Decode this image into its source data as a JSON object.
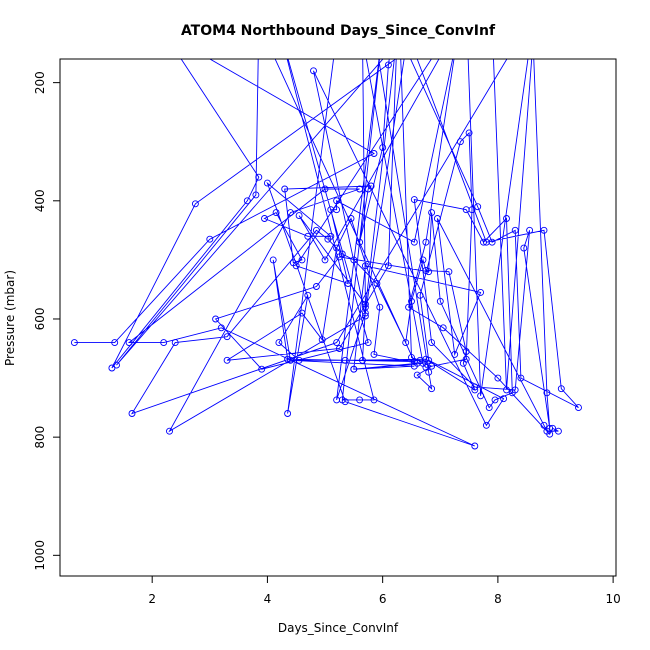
{
  "chart_data": {
    "type": "line",
    "title": "ATOM4 Northbound Days_Since_ConvInf",
    "xlabel": "Days_Since_ConvInf",
    "ylabel": "Pressure (mbar)",
    "xlim": [
      0.4,
      10.05
    ],
    "ylim": [
      1035,
      160
    ],
    "y_inverted": true,
    "x_ticks": [
      2,
      4,
      6,
      8,
      10
    ],
    "y_ticks": [
      200,
      400,
      600,
      800,
      1000
    ],
    "grid": false,
    "legend": "none",
    "marker": "open-circle",
    "series_color": "#0000ff",
    "series": [
      {
        "values": [
          [
            0.65,
            640
          ],
          [
            1.35,
            640
          ],
          [
            3.0,
            465
          ],
          [
            5.85,
            320
          ],
          [
            2.2,
            115
          ],
          [
            3.85,
            360
          ],
          [
            3.65,
            400
          ],
          [
            1.3,
            683
          ],
          [
            2.75,
            405
          ],
          [
            7.5,
            70
          ],
          [
            5.0,
            500
          ],
          [
            4.55,
            425
          ],
          [
            5.7,
            575
          ],
          [
            5.65,
            125
          ],
          [
            6.7,
            675
          ],
          [
            5.5,
            685
          ],
          [
            6.55,
            680
          ],
          [
            4.4,
            670
          ],
          [
            4.1,
            500
          ],
          [
            4.35,
            668
          ],
          [
            6.55,
            672
          ],
          [
            3.85,
            100
          ],
          [
            3.8,
            390
          ],
          [
            1.38,
            678
          ],
          [
            6.45,
            110
          ],
          [
            5.7,
            590
          ],
          [
            5.2,
            737
          ],
          [
            6.0,
            110
          ],
          [
            5.3,
            737
          ],
          [
            5.6,
            737
          ],
          [
            5.85,
            737
          ],
          [
            4.2,
            105
          ],
          [
            5.75,
            640
          ],
          [
            3.9,
            685
          ],
          [
            3.1,
            600
          ],
          [
            4.85,
            545
          ],
          [
            5.25,
            495
          ],
          [
            6.8,
            520
          ],
          [
            6.85,
            420
          ],
          [
            7.0,
            570
          ],
          [
            7.85,
            750
          ],
          [
            7.95,
            737
          ],
          [
            8.25,
            725
          ],
          [
            8.15,
            430
          ],
          [
            7.75,
            470
          ],
          [
            7.45,
            415
          ],
          [
            6.55,
            398
          ],
          [
            6.85,
            640
          ],
          [
            7.6,
            715
          ],
          [
            8.3,
            720
          ],
          [
            8.55,
            450
          ],
          [
            8.45,
            480
          ],
          [
            8.9,
            785
          ],
          [
            8.85,
            725
          ],
          [
            8.6,
            105
          ],
          [
            7.7,
            730
          ],
          [
            7.45,
            70
          ],
          [
            4.5,
            510
          ],
          [
            5.4,
            540
          ],
          [
            5.1,
            415
          ],
          [
            5.2,
            415
          ],
          [
            5.2,
            400
          ],
          [
            6.55,
            470
          ],
          [
            7.3,
            120
          ],
          [
            6.75,
            470
          ],
          [
            6.45,
            580
          ],
          [
            7.05,
            615
          ],
          [
            8.0,
            700
          ],
          [
            8.9,
            795
          ],
          [
            8.95,
            785
          ],
          [
            9.05,
            790
          ],
          [
            8.85,
            790
          ],
          [
            8.8,
            780
          ],
          [
            6.95,
            430
          ],
          [
            7.25,
            660
          ],
          [
            7.7,
            555
          ],
          [
            5.7,
            510
          ],
          [
            5.5,
            685
          ],
          [
            6.6,
            675
          ],
          [
            5.85,
            660
          ],
          [
            5.95,
            580
          ],
          [
            5.45,
            430
          ],
          [
            5.2,
            480
          ],
          [
            4.95,
            635
          ],
          [
            4.6,
            590
          ],
          [
            3.3,
            670
          ],
          [
            5.25,
            650
          ],
          [
            6.1,
            510
          ],
          [
            6.25,
            120
          ],
          [
            5.7,
            580
          ],
          [
            5.65,
            670
          ],
          [
            6.65,
            670
          ],
          [
            6.75,
            682
          ],
          [
            7.45,
            668
          ],
          [
            7.55,
            415
          ],
          [
            7.5,
            285
          ],
          [
            7.35,
            300
          ],
          [
            6.65,
            560
          ],
          [
            6.8,
            670
          ],
          [
            8.1,
            735
          ],
          [
            7.8,
            780
          ],
          [
            4.8,
            180
          ],
          [
            5.7,
            595
          ],
          [
            2.3,
            790
          ],
          [
            4.4,
            420
          ],
          [
            5.6,
            380
          ],
          [
            5.0,
            380
          ],
          [
            1.6,
            640
          ],
          [
            2.2,
            640
          ],
          [
            3.2,
            615
          ],
          [
            7.6,
            815
          ],
          [
            5.35,
            740
          ],
          [
            4.0,
            370
          ],
          [
            5.1,
            460
          ],
          [
            4.7,
            460
          ],
          [
            3.95,
            430
          ],
          [
            4.15,
            420
          ],
          [
            4.6,
            500
          ],
          [
            4.45,
            505
          ],
          [
            4.3,
            380
          ],
          [
            5.8,
            375
          ],
          [
            5.75,
            380
          ],
          [
            5.6,
            470
          ],
          [
            6.0,
            310
          ],
          [
            6.1,
            170
          ],
          [
            6.25,
            70
          ],
          [
            7.8,
            470
          ],
          [
            8.8,
            450
          ],
          [
            9.1,
            718
          ],
          [
            9.4,
            750
          ],
          [
            8.4,
            700
          ],
          [
            8.3,
            450
          ],
          [
            7.9,
            470
          ],
          [
            7.65,
            410
          ],
          [
            6.3,
            120
          ],
          [
            6.5,
            665
          ],
          [
            6.85,
            680
          ],
          [
            6.6,
            695
          ],
          [
            6.85,
            718
          ],
          [
            6.8,
            690
          ],
          [
            5.85,
            110
          ],
          [
            5.2,
            120
          ],
          [
            4.35,
            760
          ],
          [
            4.7,
            560
          ],
          [
            4.2,
            640
          ],
          [
            4.55,
            670
          ],
          [
            5.35,
            670
          ],
          [
            6.75,
            668
          ],
          [
            7.6,
            720
          ],
          [
            7.4,
            675
          ],
          [
            7.45,
            655
          ],
          [
            7.15,
            520
          ],
          [
            6.75,
            518
          ],
          [
            6.7,
            500
          ],
          [
            6.5,
            570
          ],
          [
            6.4,
            640
          ],
          [
            5.9,
            540
          ],
          [
            5.5,
            500
          ],
          [
            5.3,
            490
          ],
          [
            5.05,
            465
          ],
          [
            4.85,
            450
          ],
          [
            3.3,
            630
          ],
          [
            2.4,
            640
          ],
          [
            1.65,
            760
          ],
          [
            5.2,
            640
          ],
          [
            8.65,
            80
          ],
          [
            8.15,
            720
          ],
          [
            7.9,
            100
          ],
          [
            9.05,
            80
          ]
        ]
      }
    ]
  }
}
